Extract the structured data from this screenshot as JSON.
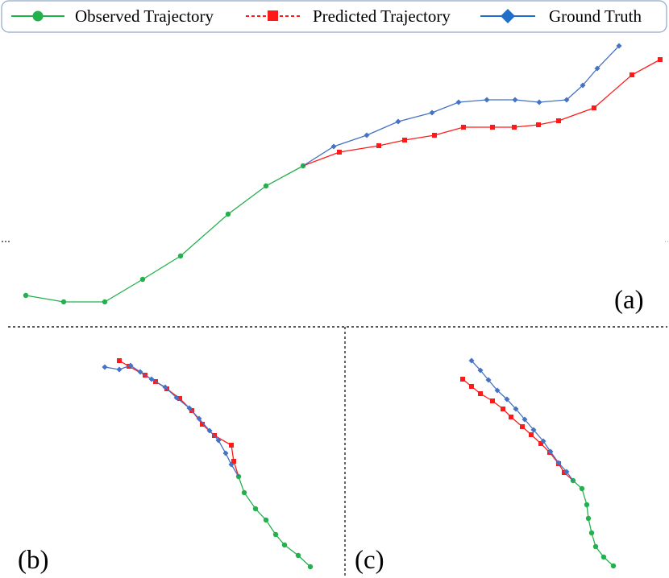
{
  "colors": {
    "observed": "#22b14c",
    "predicted": "#ff1a1a",
    "ground_truth": "#4472c4",
    "legend_diamond": "#1f6fc8",
    "legend_border": "#8fa8c8",
    "divider": "#222222"
  },
  "legend": {
    "observed_label": "Observed Trajectory",
    "predicted_label": "Predicted Trajectory",
    "ground_truth_label": "Ground Truth",
    "observed_marker": "circle",
    "predicted_marker": "square",
    "ground_truth_marker": "diamond"
  },
  "panels": {
    "a": {
      "label": "(a)",
      "observed": [
        [
          32,
          367
        ],
        [
          79,
          375
        ],
        [
          130,
          375
        ],
        [
          177,
          347
        ],
        [
          224,
          318
        ],
        [
          283,
          266
        ],
        [
          330,
          231
        ],
        [
          376,
          206
        ]
      ],
      "predicted": [
        [
          376,
          206
        ],
        [
          421,
          189
        ],
        [
          470,
          181
        ],
        [
          502,
          174
        ],
        [
          539,
          168
        ],
        [
          575,
          158
        ],
        [
          611,
          158
        ],
        [
          638,
          158
        ],
        [
          668,
          155
        ],
        [
          693,
          150
        ],
        [
          737,
          134
        ],
        [
          784,
          93
        ],
        [
          819,
          74
        ]
      ],
      "ground_truth": [
        [
          376,
          206
        ],
        [
          414,
          182
        ],
        [
          455,
          168
        ],
        [
          494,
          151
        ],
        [
          536,
          140
        ],
        [
          569,
          127
        ],
        [
          604,
          124
        ],
        [
          639,
          124
        ],
        [
          669,
          127
        ],
        [
          703,
          124
        ],
        [
          723,
          106
        ],
        [
          741,
          85
        ],
        [
          768,
          57
        ]
      ]
    },
    "b": {
      "label": "(b)",
      "observed": [
        [
          385,
          704
        ],
        [
          370,
          690
        ],
        [
          353,
          677
        ],
        [
          342,
          664
        ],
        [
          330,
          646
        ],
        [
          317,
          632
        ],
        [
          303,
          612
        ],
        [
          296,
          592
        ]
      ],
      "predicted": [
        [
          296,
          592
        ],
        [
          290,
          573
        ],
        [
          287,
          553
        ],
        [
          266,
          541
        ],
        [
          251,
          527
        ],
        [
          238,
          510
        ],
        [
          223,
          495
        ],
        [
          207,
          483
        ],
        [
          193,
          474
        ],
        [
          180,
          466
        ],
        [
          160,
          455
        ],
        [
          148,
          448
        ]
      ],
      "ground_truth": [
        [
          296,
          592
        ],
        [
          287,
          577
        ],
        [
          280,
          563
        ],
        [
          271,
          547
        ],
        [
          260,
          535
        ],
        [
          247,
          520
        ],
        [
          235,
          507
        ],
        [
          219,
          494
        ],
        [
          205,
          481
        ],
        [
          188,
          471
        ],
        [
          174,
          462
        ],
        [
          162,
          454
        ],
        [
          148,
          459
        ],
        [
          130,
          456
        ]
      ]
    },
    "c": {
      "label": "(c)",
      "observed": [
        [
          761,
          703
        ],
        [
          749,
          692
        ],
        [
          739,
          679
        ],
        [
          734,
          662
        ],
        [
          730,
          644
        ],
        [
          728,
          627
        ],
        [
          722,
          607
        ],
        [
          711,
          597
        ]
      ],
      "predicted": [
        [
          711,
          597
        ],
        [
          700,
          587
        ],
        [
          693,
          576
        ],
        [
          682,
          562
        ],
        [
          671,
          551
        ],
        [
          659,
          540
        ],
        [
          648,
          530
        ],
        [
          634,
          518
        ],
        [
          624,
          508
        ],
        [
          611,
          498
        ],
        [
          596,
          489
        ],
        [
          585,
          480
        ],
        [
          574,
          471
        ]
      ],
      "ground_truth": [
        [
          711,
          597
        ],
        [
          703,
          586
        ],
        [
          693,
          575
        ],
        [
          683,
          561
        ],
        [
          674,
          548
        ],
        [
          662,
          534
        ],
        [
          651,
          521
        ],
        [
          640,
          508
        ],
        [
          629,
          496
        ],
        [
          617,
          485
        ],
        [
          606,
          472
        ],
        [
          596,
          460
        ],
        [
          585,
          448
        ]
      ]
    }
  }
}
